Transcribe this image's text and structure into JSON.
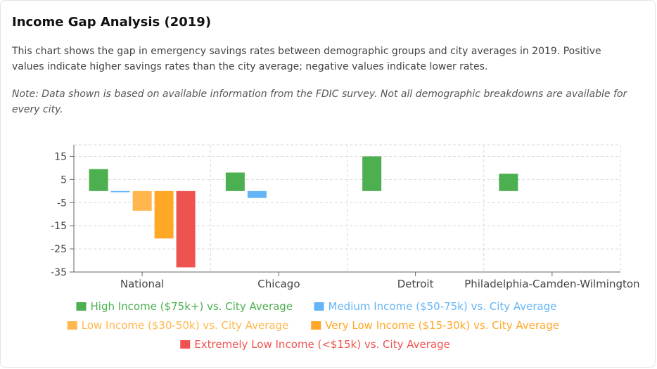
{
  "header": {
    "title": "Income Gap Analysis (2019)",
    "description": "This chart shows the gap in emergency savings rates between demographic groups and city averages in 2019. Positive values indicate higher savings rates than the city average; negative values indicate lower rates.",
    "note": "Note: Data shown is based on available information from the FDIC survey. Not all demographic breakdowns are available for every city."
  },
  "chart_data": {
    "type": "bar",
    "categories": [
      "National",
      "Chicago",
      "Detroit",
      "Philadelphia-Camden-Wilmington"
    ],
    "ylim": [
      -35,
      20
    ],
    "yticks": [
      15,
      5,
      -5,
      -15,
      -25,
      -35
    ],
    "grid": true,
    "legend_position": "bottom",
    "series": [
      {
        "name": "High Income ($75k+) vs. City Average",
        "color": "#4caf50",
        "values": [
          9.5,
          8,
          15,
          7.5
        ]
      },
      {
        "name": "Medium Income ($50-75k) vs. City Average",
        "color": "#64b5f6",
        "values": [
          -0.5,
          -3,
          null,
          null
        ]
      },
      {
        "name": "Low Income ($30-50k) vs. City Average",
        "color": "#ffb74d",
        "values": [
          -8.5,
          null,
          null,
          null
        ]
      },
      {
        "name": "Very Low Income ($15-30k) vs. City Average",
        "color": "#ffa726",
        "values": [
          -20.5,
          null,
          null,
          null
        ]
      },
      {
        "name": "Extremely Low Income (<$15k) vs. City Average",
        "color": "#ef5350",
        "values": [
          -33,
          null,
          null,
          null
        ]
      }
    ]
  }
}
